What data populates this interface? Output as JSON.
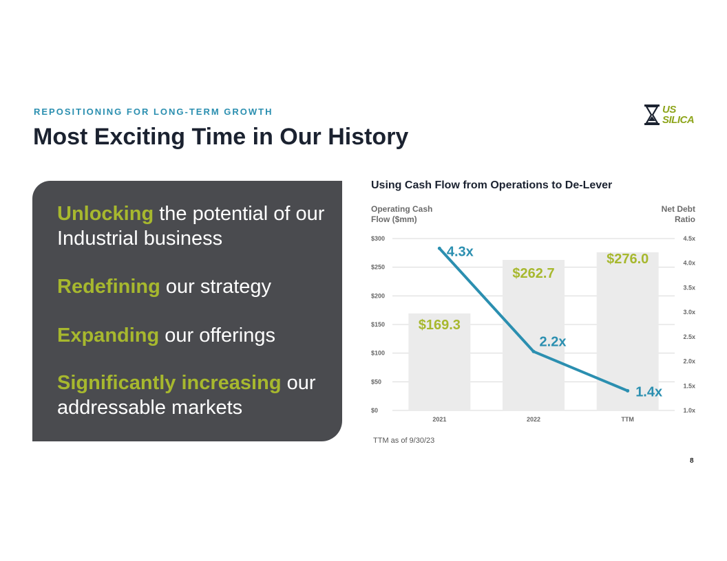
{
  "slide": {
    "eyebrow": "REPOSITIONING FOR LONG-TERM GROWTH",
    "title": "Most Exciting Time in Our History",
    "logo_line1": "US",
    "logo_line2": "SILICA",
    "page_number": "8",
    "footnote": "TTM as of 9/30/23"
  },
  "points": [
    {
      "highlight": "Unlocking",
      "rest": " the potential of our Industrial business"
    },
    {
      "highlight": "Redefining",
      "rest": " our strategy"
    },
    {
      "highlight": "Expanding",
      "rest": " our offerings"
    },
    {
      "highlight": "Significantly increasing",
      "rest": " our addressable markets"
    }
  ],
  "chart_data": {
    "type": "bar",
    "title": "Using Cash Flow from Operations to De-Lever",
    "left_axis_label": "Operating Cash Flow ($mm)",
    "right_axis_label": "Net Debt Ratio",
    "categories": [
      "2021",
      "2022",
      "TTM"
    ],
    "bar_values": [
      169.3,
      262.7,
      276.0
    ],
    "bar_labels": [
      "$169.3",
      "$262.7",
      "$276.0"
    ],
    "line_values": [
      4.3,
      2.2,
      1.4
    ],
    "line_labels": [
      "4.3x",
      "2.2x",
      "1.4x"
    ],
    "left_ticks": [
      "$0",
      "$50",
      "$100",
      "$150",
      "$200",
      "$250",
      "$300"
    ],
    "right_ticks": [
      "1.0x",
      "1.5x",
      "2.0x",
      "2.5x",
      "3.0x",
      "3.5x",
      "4.0x",
      "4.5x"
    ],
    "ylim_left": [
      0,
      300
    ],
    "ylim_right": [
      1.0,
      4.5
    ],
    "bar_color": "#ebebeb",
    "line_color": "#2b8fb0",
    "label_color": "#a7b82e",
    "grid": true
  }
}
